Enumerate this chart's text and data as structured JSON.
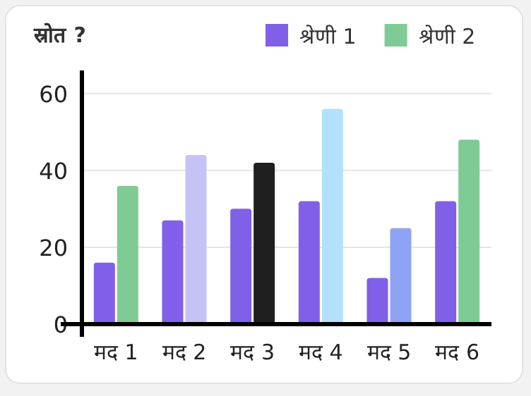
{
  "chart_data": {
    "type": "bar",
    "title": "स्रोत ?",
    "categories": [
      "मद 1",
      "मद 2",
      "मद 3",
      "मद 4",
      "मद 5",
      "मद 6"
    ],
    "series": [
      {
        "name": "श्रेणी 1",
        "color": "#8060e8",
        "values": [
          16,
          27,
          30,
          32,
          12,
          32
        ]
      },
      {
        "name": "श्रेणी 2",
        "color": "#7fcb95",
        "colors": [
          "#7fcb95",
          "#c5c3f5",
          "#1f1f1f",
          "#b3e0fb",
          "#8fa3f5",
          "#7fcb95"
        ],
        "values": [
          36,
          44,
          42,
          56,
          25,
          48
        ]
      }
    ],
    "ylim": [
      0,
      66
    ],
    "yticks": [
      0,
      20,
      40,
      60
    ],
    "grid": "y",
    "legend": "top right"
  }
}
